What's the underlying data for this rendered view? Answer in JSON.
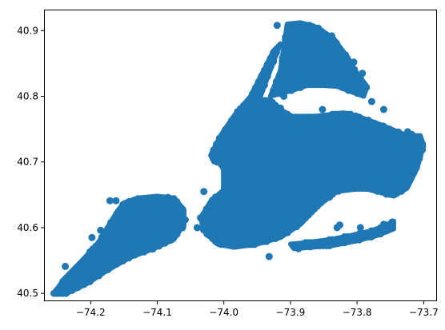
{
  "chart_data": {
    "type": "scatter",
    "title": "",
    "xlabel": "",
    "ylabel": "",
    "xlim": [
      -74.27,
      -73.68
    ],
    "ylim": [
      40.488,
      40.932
    ],
    "grid": false,
    "marker_color": "#1f77b4",
    "x_ticks": [
      -74.2,
      -74.1,
      -74.0,
      -73.9,
      -73.8,
      -73.7
    ],
    "x_tick_labels": [
      "−74.2",
      "−74.1",
      "−74.0",
      "−73.9",
      "−73.8",
      "−73.7"
    ],
    "y_ticks": [
      40.5,
      40.6,
      40.7,
      40.8,
      40.9
    ],
    "y_tick_labels": [
      "40.5",
      "40.6",
      "40.7",
      "40.8",
      "40.9"
    ],
    "series": [
      {
        "regions": [
          {
            "polygon": [
              [
                -74.255,
                40.5
              ],
              [
                -74.24,
                40.522
              ],
              [
                -74.215,
                40.548
              ],
              [
                -74.19,
                40.575
              ],
              [
                -74.175,
                40.6
              ],
              [
                -74.16,
                40.625
              ],
              [
                -74.15,
                40.638
              ],
              [
                -74.13,
                40.645
              ],
              [
                -74.1,
                40.648
              ],
              [
                -74.075,
                40.645
              ],
              [
                -74.06,
                40.628
              ],
              [
                -74.06,
                40.605
              ],
              [
                -74.075,
                40.582
              ],
              [
                -74.105,
                40.568
              ],
              [
                -74.14,
                40.555
              ],
              [
                -74.175,
                40.535
              ],
              [
                -74.205,
                40.515
              ],
              [
                -74.235,
                40.5
              ]
            ]
          },
          {
            "polygon": [
              [
                -74.035,
                40.615
              ],
              [
                -74.02,
                40.64
              ],
              [
                -74.0,
                40.658
              ],
              [
                -74.0,
                40.685
              ],
              [
                -74.005,
                40.7
              ],
              [
                -74.0,
                40.74
              ],
              [
                -73.975,
                40.775
              ],
              [
                -73.95,
                40.795
              ],
              [
                -73.93,
                40.795
              ],
              [
                -73.915,
                40.78
              ],
              [
                -73.895,
                40.768
              ],
              [
                -73.86,
                40.77
              ],
              [
                -73.82,
                40.775
              ],
              [
                -73.8,
                40.77
              ],
              [
                -73.76,
                40.755
              ],
              [
                -73.725,
                40.74
              ],
              [
                -73.705,
                40.74
              ],
              [
                -73.7,
                40.725
              ],
              [
                -73.71,
                40.69
              ],
              [
                -73.725,
                40.66
              ],
              [
                -73.745,
                40.648
              ],
              [
                -73.79,
                40.66
              ],
              [
                -73.83,
                40.655
              ],
              [
                -73.86,
                40.632
              ],
              [
                -73.885,
                40.605
              ],
              [
                -73.915,
                40.585
              ],
              [
                -73.95,
                40.575
              ],
              [
                -73.985,
                40.57
              ],
              [
                -74.01,
                40.575
              ],
              [
                -74.03,
                40.595
              ]
            ]
          },
          {
            "polygon": [
              [
                -74.015,
                40.7
              ],
              [
                -74.02,
                40.71
              ],
              [
                -74.005,
                40.74
              ],
              [
                -73.985,
                40.77
              ],
              [
                -73.96,
                40.8
              ],
              [
                -73.945,
                40.83
              ],
              [
                -73.925,
                40.87
              ],
              [
                -73.915,
                40.88
              ],
              [
                -73.93,
                40.84
              ],
              [
                -73.945,
                40.8
              ],
              [
                -73.965,
                40.76
              ],
              [
                -73.985,
                40.725
              ],
              [
                -74.0,
                40.705
              ]
            ]
          },
          {
            "polygon": [
              [
                -73.93,
                40.8
              ],
              [
                -73.915,
                40.84
              ],
              [
                -73.91,
                40.875
              ],
              [
                -73.905,
                40.91
              ],
              [
                -73.885,
                40.912
              ],
              [
                -73.86,
                40.905
              ],
              [
                -73.835,
                40.888
              ],
              [
                -73.815,
                40.86
              ],
              [
                -73.8,
                40.835
              ],
              [
                -73.785,
                40.815
              ],
              [
                -73.79,
                40.8
              ],
              [
                -73.83,
                40.815
              ],
              [
                -73.87,
                40.818
              ],
              [
                -73.9,
                40.808
              ]
            ]
          },
          {
            "polygon": [
              [
                -73.9,
                40.575
              ],
              [
                -73.87,
                40.578
              ],
              [
                -73.84,
                40.582
              ],
              [
                -73.81,
                40.588
              ],
              [
                -73.78,
                40.595
              ],
              [
                -73.76,
                40.602
              ],
              [
                -73.745,
                40.61
              ],
              [
                -73.745,
                40.598
              ],
              [
                -73.77,
                40.588
              ],
              [
                -73.8,
                40.58
              ],
              [
                -73.835,
                40.573
              ],
              [
                -73.87,
                40.57
              ],
              [
                -73.895,
                40.568
              ]
            ]
          }
        ],
        "points": [
          [
            -74.25,
            40.505
          ],
          [
            -74.238,
            40.541
          ],
          [
            -74.222,
            40.512
          ],
          [
            -74.198,
            40.585
          ],
          [
            -74.185,
            40.596
          ],
          [
            -74.171,
            40.641
          ],
          [
            -74.162,
            40.641
          ],
          [
            -74.084,
            40.646
          ],
          [
            -74.062,
            40.6
          ],
          [
            -74.058,
            40.612
          ],
          [
            -74.03,
            40.62
          ],
          [
            -74.025,
            40.59
          ],
          [
            -74.005,
            40.575
          ],
          [
            -73.985,
            40.575
          ],
          [
            -73.96,
            40.578
          ],
          [
            -73.95,
            40.585
          ],
          [
            -73.932,
            40.556
          ],
          [
            -73.888,
            40.568
          ],
          [
            -73.87,
            40.571
          ],
          [
            -73.83,
            40.6
          ],
          [
            -73.826,
            40.604
          ],
          [
            -73.795,
            40.6
          ],
          [
            -73.76,
            40.605
          ],
          [
            -73.748,
            40.608
          ],
          [
            -73.742,
            40.722
          ],
          [
            -73.724,
            40.746
          ],
          [
            -73.718,
            40.742
          ],
          [
            -73.71,
            40.7
          ],
          [
            -73.76,
            40.78
          ],
          [
            -73.778,
            40.792
          ],
          [
            -73.802,
            40.77
          ],
          [
            -73.805,
            40.852
          ],
          [
            -73.815,
            40.858
          ],
          [
            -73.86,
            40.76
          ],
          [
            -73.887,
            40.838
          ],
          [
            -73.91,
            40.8
          ],
          [
            -73.92,
            40.908
          ],
          [
            -73.867,
            40.906
          ],
          [
            -73.838,
            40.892
          ],
          [
            -73.792,
            40.835
          ],
          [
            -74.01,
            40.7
          ],
          [
            -74.004,
            40.733
          ],
          [
            -73.99,
            40.69
          ],
          [
            -73.97,
            40.76
          ],
          [
            -74.015,
            40.632
          ],
          [
            -74.04,
            40.6
          ],
          [
            -74.03,
            40.655
          ],
          [
            -73.73,
            40.678
          ],
          [
            -73.73,
            40.66
          ],
          [
            -73.915,
            40.782
          ],
          [
            -73.852,
            40.78
          ],
          [
            -73.842,
            40.752
          ]
        ]
      }
    ]
  }
}
